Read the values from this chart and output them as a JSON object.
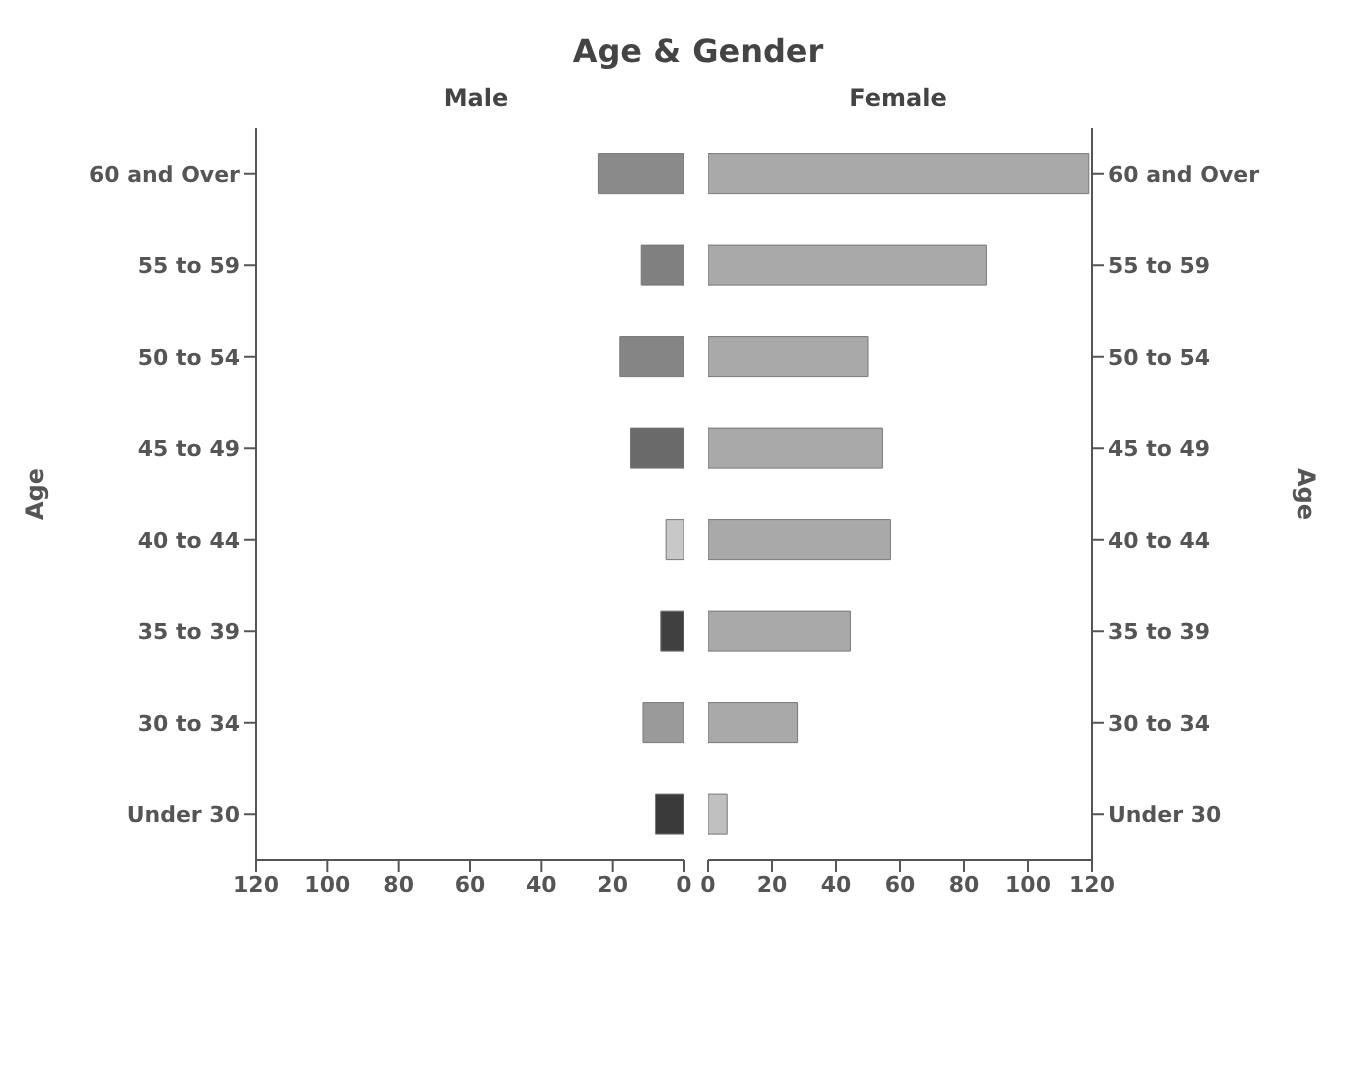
{
  "chart_data": [
    {
      "type": "bar",
      "title": "Age & Gender",
      "subtitle": "Male",
      "ylabel": "Age",
      "orientation": "horizontal",
      "categories": [
        "60 and Over",
        "55 to 59",
        "50 to 54",
        "45 to 49",
        "40 to 44",
        "35 to 39",
        "30 to 34",
        "Under 30"
      ],
      "values": [
        24,
        12,
        18,
        15,
        5,
        6.5,
        11.5,
        8
      ],
      "colors": [
        "#8a8a8a",
        "#808080",
        "#858585",
        "#6a6a6a",
        "#c8c8c8",
        "#404040",
        "#9a9a9a",
        "#3a3a3a"
      ],
      "xlim": [
        120,
        0
      ],
      "xticks": [
        120,
        100,
        80,
        60,
        40,
        20,
        0
      ],
      "grid": false,
      "legend": false
    },
    {
      "type": "bar",
      "subtitle": "Female",
      "ylabel": "Age",
      "orientation": "horizontal",
      "categories": [
        "60 and Over",
        "55 to 59",
        "50 to 54",
        "45 to 49",
        "40 to 44",
        "35 to 39",
        "30 to 34",
        "Under 30"
      ],
      "values": [
        119,
        87,
        50,
        54.5,
        57,
        44.5,
        28,
        6
      ],
      "colors": [
        "#a9a9a9",
        "#a9a9a9",
        "#a9a9a9",
        "#a9a9a9",
        "#a9a9a9",
        "#a9a9a9",
        "#a9a9a9",
        "#c0c0c0"
      ],
      "xlim": [
        0,
        120
      ],
      "xticks": [
        0,
        20,
        40,
        60,
        80,
        100,
        120
      ],
      "grid": false,
      "legend": false
    }
  ]
}
